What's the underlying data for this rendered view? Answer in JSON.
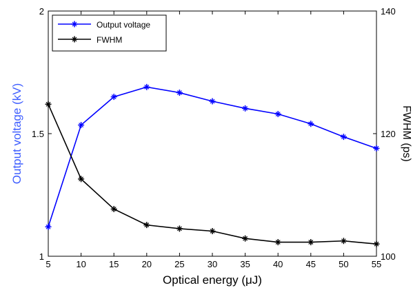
{
  "chart_data": {
    "type": "line",
    "xlabel": "Optical energy (μJ)",
    "x": [
      5,
      10,
      15,
      20,
      25,
      30,
      35,
      40,
      45,
      50,
      55
    ],
    "x_ticks": [
      "5",
      "10",
      "15",
      "20",
      "25",
      "30",
      "35",
      "40",
      "45",
      "50",
      "55"
    ],
    "xlim": [
      5,
      55
    ],
    "y_left": {
      "label": "Output voltage (kV)",
      "color": "#3c5cff",
      "lim": [
        1,
        2
      ],
      "ticks": [
        "1",
        "1.5",
        "2"
      ]
    },
    "y_right": {
      "label": "FWHM (ps)",
      "color": "#000000",
      "lim": [
        100,
        140
      ],
      "ticks": [
        "100",
        "120",
        "140"
      ]
    },
    "series": [
      {
        "name": "Output voltage",
        "axis": "left",
        "color": "#0000ff",
        "marker": "star",
        "values": [
          1.12,
          1.535,
          1.65,
          1.69,
          1.667,
          1.632,
          1.603,
          1.58,
          1.54,
          1.487,
          1.44
        ]
      },
      {
        "name": "FWHM",
        "axis": "right",
        "color": "#000000",
        "marker": "star",
        "values": [
          124.8,
          112.6,
          107.7,
          105.1,
          104.5,
          104.1,
          102.9,
          102.3,
          102.3,
          102.5,
          102.0
        ]
      }
    ],
    "legend_position": "top-left",
    "grid": false
  }
}
